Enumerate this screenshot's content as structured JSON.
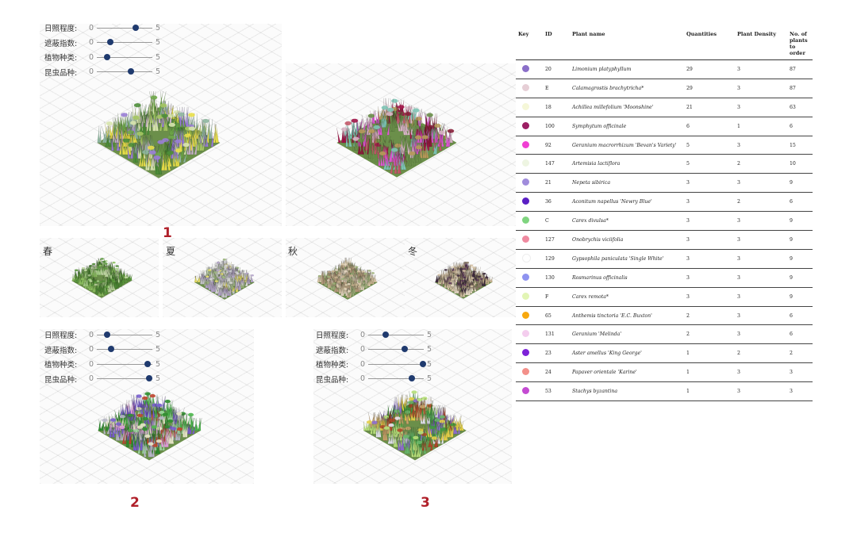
{
  "sliders": {
    "labels": [
      "日照程度:",
      "遮蔽指数:",
      "植物种类:",
      "昆虫品种:"
    ],
    "min_label": "0",
    "max_label": "5",
    "groups": [
      {
        "values": [
          3.5,
          1.2,
          0.9,
          3.1
        ]
      },
      {
        "values": [
          0.9,
          1.3,
          4.6,
          4.7
        ]
      },
      {
        "values": [
          1.6,
          3.3,
          4.9,
          3.9
        ]
      }
    ]
  },
  "panels": {
    "one": "1",
    "two": "2",
    "three": "3"
  },
  "seasons": [
    "春",
    "夏",
    "秋",
    "冬"
  ],
  "table": {
    "headers": {
      "key": "Key",
      "id": "ID",
      "name": "Plant name",
      "quantities": "Quantities",
      "density": "Plant Density",
      "order": "No. of plants to order"
    },
    "rows": [
      {
        "color": "#8b6fc9",
        "id": "20",
        "name": "Limonium platyphyllum",
        "quantities": "29",
        "density": "3",
        "order": "87"
      },
      {
        "color": "#e6cfd6",
        "id": "E",
        "name": "Calamagrostis brachytricha*",
        "quantities": "29",
        "density": "3",
        "order": "87"
      },
      {
        "color": "#f5f7d8",
        "id": "18",
        "name": "Achillea millefolium 'Moonshine'",
        "quantities": "21",
        "density": "3",
        "order": "63"
      },
      {
        "color": "#9c1f63",
        "id": "100",
        "name": "Symphytum officinale",
        "quantities": "6",
        "density": "1",
        "order": "6"
      },
      {
        "color": "#f03fd3",
        "id": "92",
        "name": "Geranium macrorrhizum 'Bevan's Variety'",
        "quantities": "5",
        "density": "3",
        "order": "15"
      },
      {
        "color": "#eef5e2",
        "id": "147",
        "name": "Artemisia lactiflora",
        "quantities": "5",
        "density": "2",
        "order": "10"
      },
      {
        "color": "#a08cdc",
        "id": "21",
        "name": "Nepeta sibirica",
        "quantities": "3",
        "density": "3",
        "order": "9"
      },
      {
        "color": "#5a1fc4",
        "id": "36",
        "name": "Aconitum napellus 'Newry Blue'",
        "quantities": "3",
        "density": "2",
        "order": "6"
      },
      {
        "color": "#7fd47f",
        "id": "C",
        "name": "Carex divulsa*",
        "quantities": "3",
        "density": "3",
        "order": "9"
      },
      {
        "color": "#ef8aa0",
        "id": "127",
        "name": "Onobrychis viciifolia",
        "quantities": "3",
        "density": "3",
        "order": "9"
      },
      {
        "color": "#ffffff",
        "id": "129",
        "name": "Gypsophila paniculata 'Single White'",
        "quantities": "3",
        "density": "3",
        "order": "9"
      },
      {
        "color": "#8f93f0",
        "id": "130",
        "name": "Rosmarinus officinalis",
        "quantities": "3",
        "density": "3",
        "order": "9"
      },
      {
        "color": "#e2f5b5",
        "id": "F",
        "name": "Carex remota*",
        "quantities": "3",
        "density": "3",
        "order": "9"
      },
      {
        "color": "#f7a80e",
        "id": "65",
        "name": "Anthemis tinctoria 'E.C. Buxton'",
        "quantities": "2",
        "density": "3",
        "order": "6"
      },
      {
        "color": "#f4cdee",
        "id": "131",
        "name": "Geranium 'Melinda'",
        "quantities": "2",
        "density": "3",
        "order": "6"
      },
      {
        "color": "#7d22d8",
        "id": "23",
        "name": "Aster amellus 'King George'",
        "quantities": "1",
        "density": "2",
        "order": "2"
      },
      {
        "color": "#f3908a",
        "id": "24",
        "name": "Papaver orientale 'Karine'",
        "quantities": "1",
        "density": "3",
        "order": "3"
      },
      {
        "color": "#c44bd2",
        "id": "53",
        "name": "Stachys byzantina",
        "quantities": "1",
        "density": "3",
        "order": "3"
      }
    ]
  },
  "colors": {
    "panel_number": "#b0202a",
    "slider_thumb": "#1f3a6e"
  },
  "gardens": {
    "g1a": [
      "#6fa84a",
      "#a6c864",
      "#e9e04a",
      "#9a7fd6",
      "#c7b2c7",
      "#4e8f3a",
      "#d9e7b0",
      "#8fb7a0"
    ],
    "g1b": [
      "#a3164a",
      "#e05ad5",
      "#c45a6a",
      "#b79a5a",
      "#7fc7b7",
      "#6a8f4a",
      "#d9b7c7",
      "#8a1f3a"
    ],
    "spring": [
      "#5c9a3e",
      "#8cc060",
      "#a9d28a",
      "#4f8a36",
      "#c4dca6"
    ],
    "summer": [
      "#c8c8cc",
      "#e8e06a",
      "#b5a6c9",
      "#9fb87f",
      "#dcdcd6",
      "#d7d7d7"
    ],
    "autumn": [
      "#d9c9a8",
      "#c7b28f",
      "#9fb07a",
      "#e4d7c1",
      "#b89f7f"
    ],
    "winter": [
      "#d6c3a6",
      "#c9b591",
      "#5e3a5a",
      "#8f7f6a",
      "#e8dcc7",
      "#3f2d3f"
    ],
    "g2": [
      "#2f8f2f",
      "#4fb84f",
      "#e39fdc",
      "#7a5fd0",
      "#b8b8c8",
      "#c0452f",
      "#9fd89f",
      "#e8e8c8"
    ],
    "g3": [
      "#3f9a3f",
      "#6ab86a",
      "#c9a36a",
      "#b04a2a",
      "#e6e6f0",
      "#b7e07a",
      "#e6d24a",
      "#8f6fd0"
    ]
  }
}
